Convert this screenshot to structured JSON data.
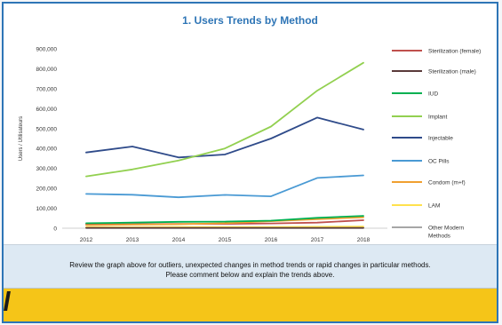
{
  "chart_data": {
    "type": "line",
    "title": "1. Users Trends by Method",
    "ylabel": "Users / Utilisateurs",
    "xlabel": "",
    "x": [
      "2012",
      "2013",
      "2014",
      "2015",
      "2016",
      "2017",
      "2018"
    ],
    "ylim": [
      0,
      900000
    ],
    "yticks": [
      "0",
      "100,000",
      "200,000",
      "300,000",
      "400,000",
      "500,000",
      "600,000",
      "700,000",
      "800,000",
      "900,000"
    ],
    "legend_position": "right",
    "series": [
      {
        "name": "Sterilization (female)",
        "color": "#c0504d",
        "values": [
          20000,
          20000,
          22000,
          22000,
          24000,
          28000,
          40000
        ]
      },
      {
        "name": "Sterilization (male)",
        "color": "#5a3a3a",
        "values": [
          2000,
          2000,
          2000,
          2000,
          2000,
          2000,
          2000
        ]
      },
      {
        "name": "IUD",
        "color": "#00b050",
        "values": [
          25000,
          28000,
          32000,
          33000,
          38000,
          52000,
          62000
        ]
      },
      {
        "name": "Implant",
        "color": "#92d050",
        "values": [
          260000,
          295000,
          340000,
          400000,
          510000,
          690000,
          830000
        ]
      },
      {
        "name": "Injectable",
        "color": "#2f4b8a",
        "values": [
          380000,
          410000,
          355000,
          370000,
          450000,
          555000,
          495000
        ]
      },
      {
        "name": "OC Pills",
        "color": "#4a9ad4",
        "values": [
          172000,
          168000,
          155000,
          167000,
          160000,
          252000,
          265000
        ]
      },
      {
        "name": "Condom (m+f)",
        "color": "#f0a030",
        "values": [
          15000,
          18000,
          20000,
          25000,
          35000,
          45000,
          55000
        ]
      },
      {
        "name": "LAM",
        "color": "#ffe14d",
        "values": [
          5000,
          5000,
          6000,
          6000,
          6000,
          7000,
          8000
        ]
      },
      {
        "name": "Other Modern Methods",
        "color": "#a6a6a6",
        "values": [
          1000,
          1000,
          1000,
          1000,
          1000,
          1000,
          1000
        ]
      }
    ]
  },
  "notes": {
    "line1": "Review the graph above for outliers, unexpected changes in method trends or rapid changes in particular methods.",
    "line2": "Please comment below and explain the trends above."
  }
}
